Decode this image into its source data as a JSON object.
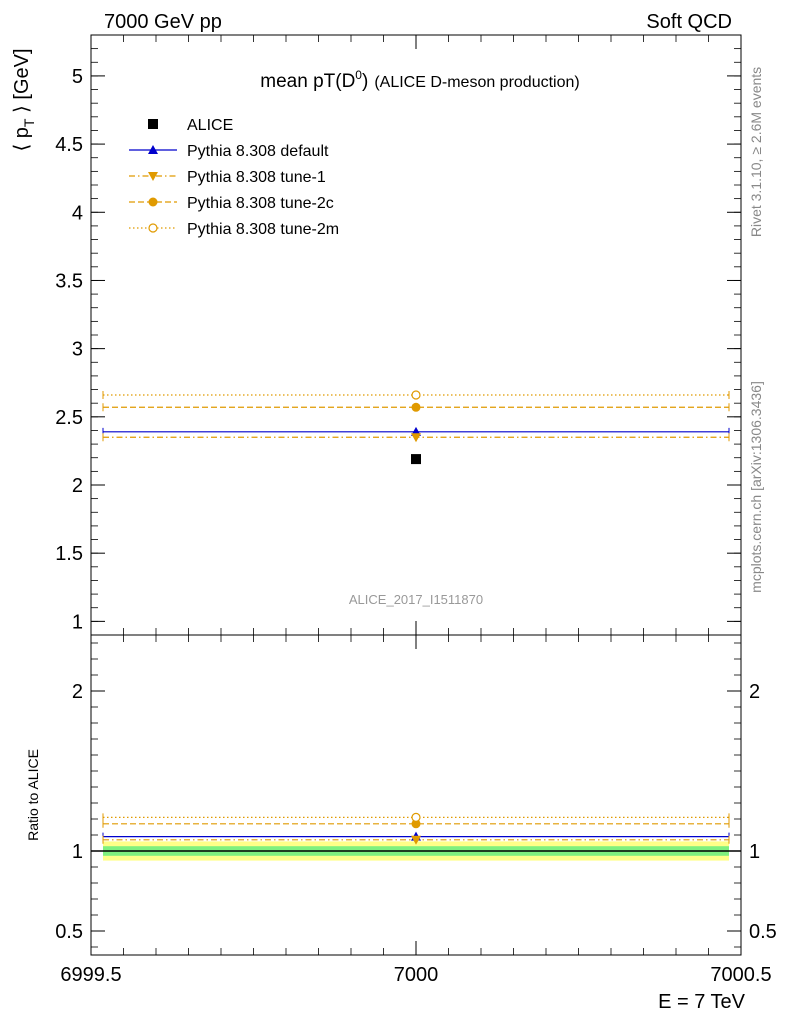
{
  "header": {
    "left": "7000 GeV pp",
    "right": "Soft QCD"
  },
  "side_labels": {
    "rivet": "Rivet 3.1.10, ≥ 2.6M events",
    "mcplots": "mcplots.cern.ch [arXiv:1306.3436]"
  },
  "watermark": "ALICE_2017_I1511870",
  "colors": {
    "data": "#000000",
    "default": "#0000cc",
    "tune_orange": "#e09a00",
    "band_inner": "#7ff07f",
    "band_outer": "#ffff88"
  },
  "chart_data": [
    {
      "type": "scatter",
      "title": "mean pT(D",
      "title_sup": "0",
      "title_close": ")",
      "title_suffix": "(ALICE D-meson production)",
      "ylabel": "⟨ p",
      "ylabel_sub": "T",
      "ylabel_end": " ⟩ [GeV]",
      "ylim": [
        0.9,
        5.3
      ],
      "xlim": [
        6999.5,
        7000.5
      ],
      "yticks": [
        {
          "v": 1,
          "label": "1"
        },
        {
          "v": 1.5,
          "label": "1.5"
        },
        {
          "v": 2,
          "label": "2"
        },
        {
          "v": 2.5,
          "label": "2.5"
        },
        {
          "v": 3,
          "label": "3"
        },
        {
          "v": 3.5,
          "label": "3.5"
        },
        {
          "v": 4,
          "label": "4"
        },
        {
          "v": 4.5,
          "label": "4.5"
        },
        {
          "v": 5,
          "label": "5"
        }
      ],
      "series": [
        {
          "name": "ALICE",
          "x": 7000,
          "y": 2.19,
          "marker": "square",
          "line": "none"
        },
        {
          "name": "Pythia 8.308 default",
          "x": 7000,
          "y": 2.39,
          "marker": "triangle-up",
          "line": "solid"
        },
        {
          "name": "Pythia 8.308 tune-1",
          "x": 7000,
          "y": 2.35,
          "marker": "triangle-down",
          "line": "dashdot"
        },
        {
          "name": "Pythia 8.308 tune-2c",
          "x": 7000,
          "y": 2.57,
          "marker": "circle",
          "line": "dashed"
        },
        {
          "name": "Pythia 8.308 tune-2m",
          "x": 7000,
          "y": 2.66,
          "marker": "circle-open",
          "line": "dotted"
        }
      ]
    },
    {
      "type": "scatter",
      "ylabel": "Ratio to ALICE",
      "xlabel": "E = 7 TeV",
      "ylim": [
        0.35,
        2.35
      ],
      "xlim": [
        6999.5,
        7000.5
      ],
      "xticks": [
        {
          "v": 6999.5,
          "label": "6999.5"
        },
        {
          "v": 7000,
          "label": "7000"
        },
        {
          "v": 7000.5,
          "label": "7000.5"
        }
      ],
      "yticks": [
        {
          "v": 0.5,
          "label": "0.5"
        },
        {
          "v": 1,
          "label": "1"
        },
        {
          "v": 2,
          "label": "2"
        }
      ],
      "band": {
        "inner": [
          0.97,
          1.03
        ],
        "outer": [
          0.94,
          1.06
        ]
      },
      "series": [
        {
          "name": "Pythia 8.308 default",
          "x": 7000,
          "y": 1.09
        },
        {
          "name": "Pythia 8.308 tune-1",
          "x": 7000,
          "y": 1.07
        },
        {
          "name": "Pythia 8.308 tune-2c",
          "x": 7000,
          "y": 1.17
        },
        {
          "name": "Pythia 8.308 tune-2m",
          "x": 7000,
          "y": 1.21
        }
      ]
    }
  ]
}
